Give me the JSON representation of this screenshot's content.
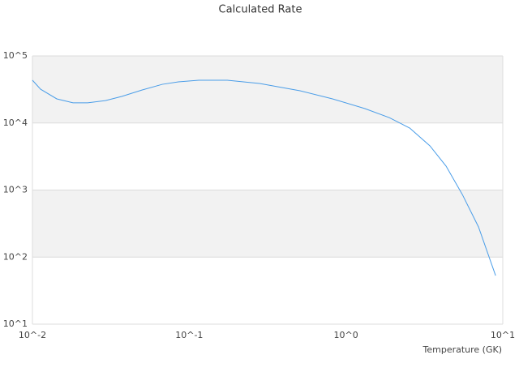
{
  "chart_data": {
    "type": "line",
    "title": "Calculated Rate",
    "xlabel": "Temperature (GK)",
    "xscale": "log",
    "yscale": "log",
    "grid": true,
    "band_color": "#f2f2f2",
    "xlim": [
      0.01,
      10
    ],
    "ylim": [
      10,
      100000
    ],
    "xticks": [
      {
        "value": 0.01,
        "label": "10^-2"
      },
      {
        "value": 0.1,
        "label": "10^-1"
      },
      {
        "value": 1,
        "label": "10^0"
      },
      {
        "value": 10,
        "label": "10^1"
      }
    ],
    "yticks": [
      {
        "value": 10,
        "label": "10^1"
      },
      {
        "value": 100,
        "label": "10^2"
      },
      {
        "value": 1000,
        "label": "10^3"
      },
      {
        "value": 10000,
        "label": "10^4"
      },
      {
        "value": 100000,
        "label": "10^5"
      }
    ],
    "x": [
      0.01,
      0.01127,
      0.01429,
      0.01816,
      0.0225,
      0.0292,
      0.0371,
      0.0499,
      0.0673,
      0.0853,
      0.115,
      0.175,
      0.281,
      0.509,
      0.82,
      1.32,
      1.89,
      2.55,
      3.43,
      4.35,
      5.52,
      7.0,
      9.0
    ],
    "series": [
      {
        "color": "#4a9de8",
        "values": [
          43400,
          31900,
          22900,
          20000,
          20000,
          21600,
          24900,
          31000,
          37700,
          41000,
          43400,
          43400,
          38800,
          30200,
          22900,
          16400,
          12000,
          8390,
          4560,
          2270,
          859,
          282,
          53
        ]
      }
    ]
  }
}
